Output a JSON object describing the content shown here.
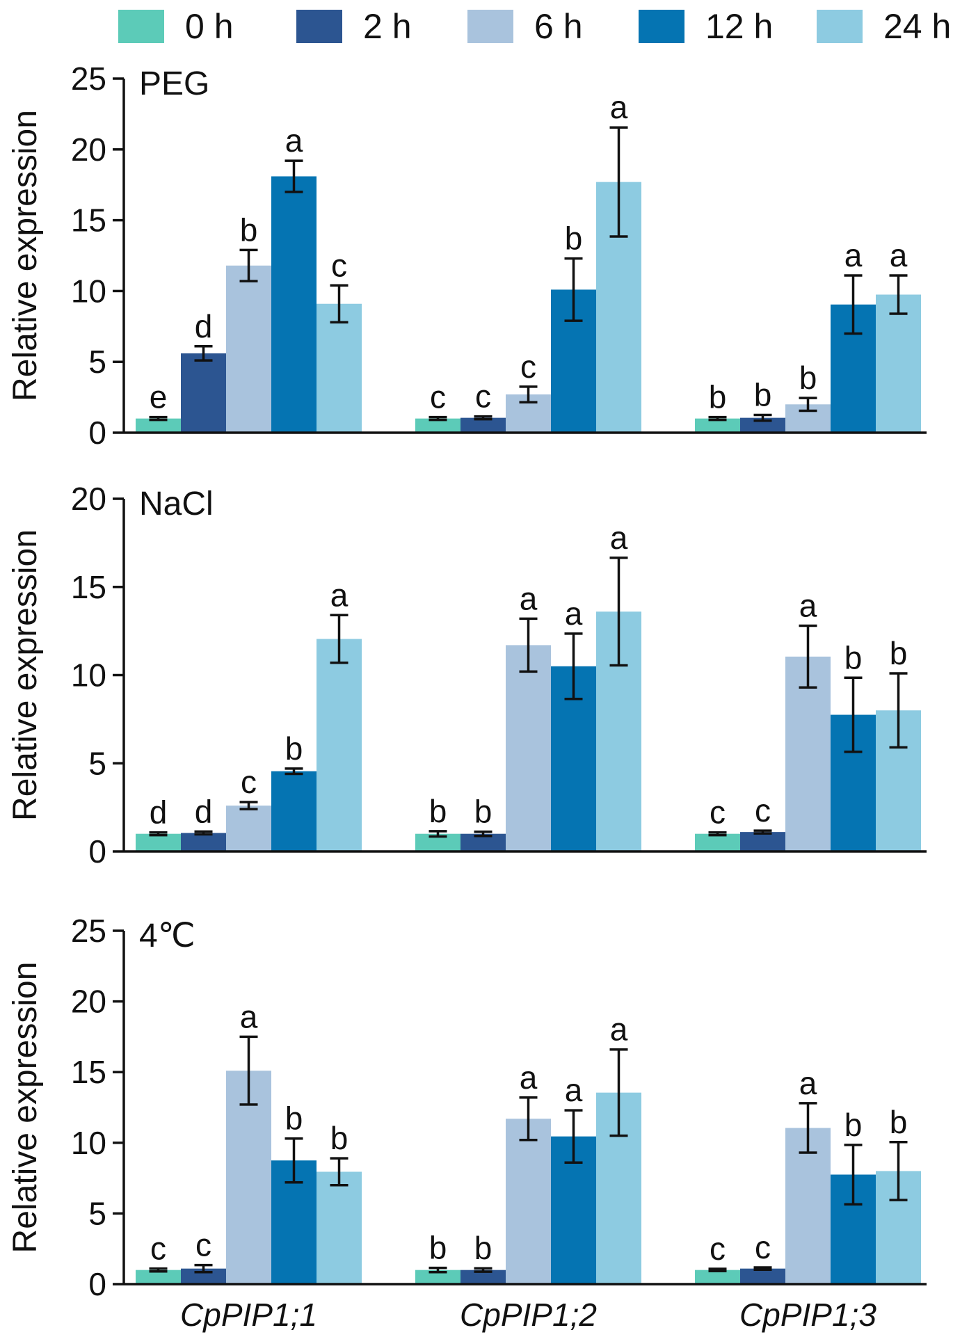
{
  "legend": {
    "items": [
      {
        "label": "0 h",
        "color": "#5ccbb8"
      },
      {
        "label": "2 h",
        "color": "#2c5591"
      },
      {
        "label": "6 h",
        "color": "#a9c3dd"
      },
      {
        "label": "12 h",
        "color": "#0574b2"
      },
      {
        "label": "24 h",
        "color": "#8dcbe1"
      }
    ]
  },
  "chart_data": [
    {
      "type": "bar",
      "title": "PEG",
      "ylabel": "Relative expression",
      "ylim": [
        0,
        25
      ],
      "yticks": [
        "0",
        "5",
        "10",
        "15",
        "20",
        "25"
      ],
      "categories": [
        "CpPIP1;1",
        "CpPIP1;2",
        "CpPIP1;3"
      ],
      "series": [
        {
          "name": "0 h",
          "values": [
            1.0,
            1.0,
            1.0
          ],
          "errors": [
            0.1,
            0.1,
            0.1
          ],
          "letters": [
            "e",
            "c",
            "b"
          ]
        },
        {
          "name": "2 h",
          "values": [
            5.6,
            1.05,
            1.05
          ],
          "errors": [
            0.5,
            0.1,
            0.2
          ],
          "letters": [
            "d",
            "c",
            "b"
          ]
        },
        {
          "name": "6 h",
          "values": [
            11.8,
            2.7,
            2.0
          ],
          "errors": [
            1.1,
            0.55,
            0.45
          ],
          "letters": [
            "b",
            "c",
            "b"
          ]
        },
        {
          "name": "12 h",
          "values": [
            18.1,
            10.1,
            9.05
          ],
          "errors": [
            1.1,
            2.2,
            2.05
          ],
          "letters": [
            "a",
            "b",
            "a"
          ]
        },
        {
          "name": "24 h",
          "values": [
            9.1,
            17.7,
            9.75
          ],
          "errors": [
            1.3,
            3.85,
            1.35
          ],
          "letters": [
            "c",
            "a",
            "a"
          ]
        }
      ]
    },
    {
      "type": "bar",
      "title": "NaCl",
      "ylabel": "Relative expression",
      "ylim": [
        0,
        20
      ],
      "yticks": [
        "0",
        "5",
        "10",
        "15",
        "20"
      ],
      "categories": [
        "CpPIP1;1",
        "CpPIP1;2",
        "CpPIP1;3"
      ],
      "series": [
        {
          "name": "0 h",
          "values": [
            1.0,
            1.0,
            1.0
          ],
          "errors": [
            0.08,
            0.15,
            0.08
          ],
          "letters": [
            "d",
            "b",
            "c"
          ]
        },
        {
          "name": "2 h",
          "values": [
            1.05,
            1.0,
            1.1
          ],
          "errors": [
            0.08,
            0.12,
            0.08
          ],
          "letters": [
            "d",
            "b",
            "c"
          ]
        },
        {
          "name": "6 h",
          "values": [
            2.6,
            11.7,
            11.05
          ],
          "errors": [
            0.2,
            1.5,
            1.75
          ],
          "letters": [
            "c",
            "a",
            "a"
          ]
        },
        {
          "name": "12 h",
          "values": [
            4.55,
            10.5,
            7.75
          ],
          "errors": [
            0.15,
            1.85,
            2.1
          ],
          "letters": [
            "b",
            "a",
            "b"
          ]
        },
        {
          "name": "24 h",
          "values": [
            12.05,
            13.6,
            8.0
          ],
          "errors": [
            1.35,
            3.05,
            2.1
          ],
          "letters": [
            "a",
            "a",
            "b"
          ]
        }
      ]
    },
    {
      "type": "bar",
      "title": "4℃",
      "ylabel": "Relative expression",
      "ylim": [
        0,
        25
      ],
      "yticks": [
        "0",
        "5",
        "10",
        "15",
        "20",
        "25"
      ],
      "categories": [
        "CpPIP1;1",
        "CpPIP1;2",
        "CpPIP1;3"
      ],
      "series": [
        {
          "name": "0 h",
          "values": [
            1.0,
            1.0,
            1.0
          ],
          "errors": [
            0.1,
            0.15,
            0.08
          ],
          "letters": [
            "c",
            "b",
            "c"
          ]
        },
        {
          "name": "2 h",
          "values": [
            1.1,
            1.0,
            1.1
          ],
          "errors": [
            0.25,
            0.12,
            0.08
          ],
          "letters": [
            "c",
            "b",
            "c"
          ]
        },
        {
          "name": "6 h",
          "values": [
            15.1,
            11.7,
            11.05
          ],
          "errors": [
            2.4,
            1.5,
            1.75
          ],
          "letters": [
            "a",
            "a",
            "a"
          ]
        },
        {
          "name": "12 h",
          "values": [
            8.75,
            10.45,
            7.75
          ],
          "errors": [
            1.55,
            1.85,
            2.1
          ],
          "letters": [
            "b",
            "a",
            "b"
          ]
        },
        {
          "name": "24 h",
          "values": [
            7.95,
            13.55,
            8.0
          ],
          "errors": [
            0.95,
            3.05,
            2.05
          ],
          "letters": [
            "b",
            "a",
            "b"
          ]
        }
      ]
    }
  ]
}
